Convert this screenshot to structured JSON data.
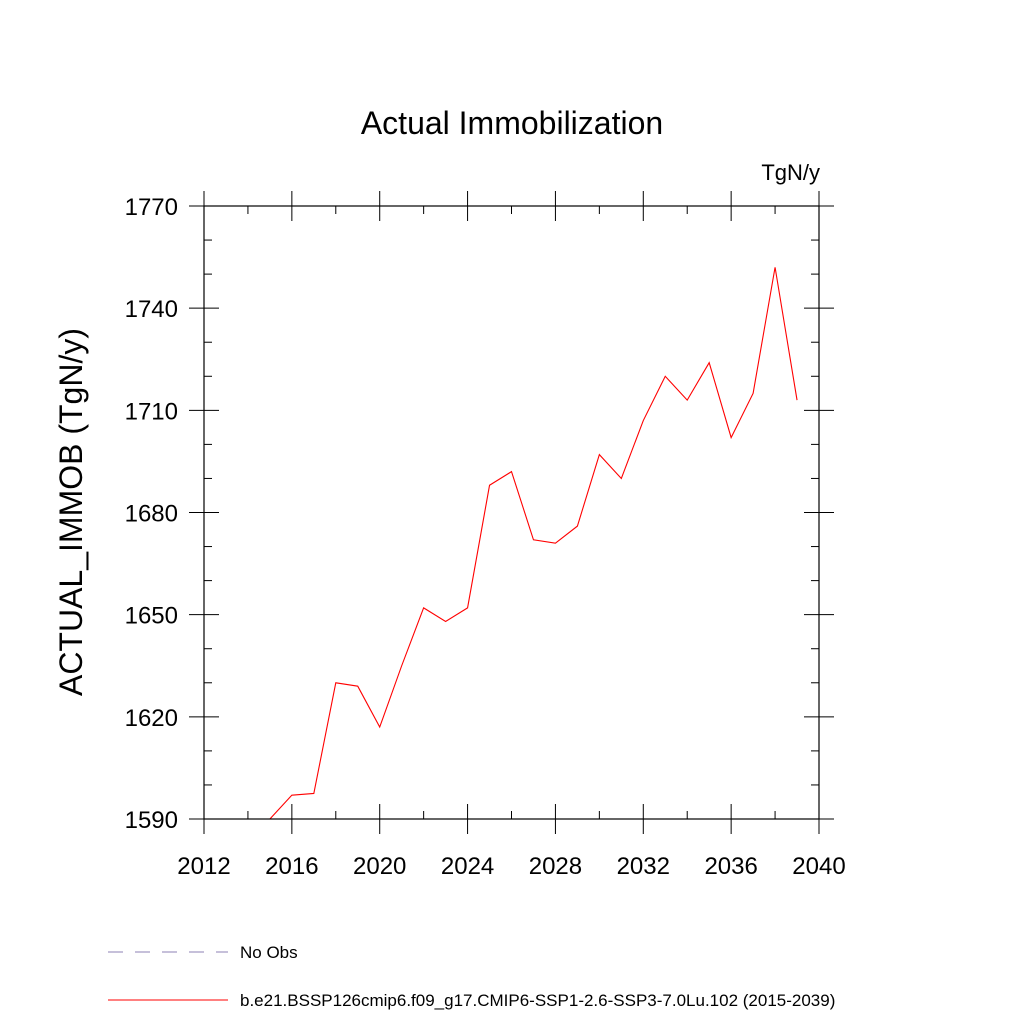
{
  "chart_data": {
    "type": "line",
    "title": "Actual Immobilization",
    "units": "TgN/y",
    "xlabel": "",
    "ylabel": "ACTUAL_IMMOB  (TgN/y)",
    "xlim": [
      2012,
      2040
    ],
    "ylim": [
      1590,
      1770
    ],
    "x_ticks": [
      2012,
      2016,
      2020,
      2024,
      2028,
      2032,
      2036,
      2040
    ],
    "y_ticks": [
      1590,
      1620,
      1650,
      1680,
      1710,
      1740,
      1770
    ],
    "x_minor_step": 2,
    "y_minor_step": 10,
    "grid": false,
    "legend_position": "bottom",
    "series": [
      {
        "name": "b.e21.BSSP126cmip6.f09_g17.CMIP6-SSP1-2.6-SSP3-7.0Lu.102 (2015-2039)",
        "color": "#ff0000",
        "style": "solid",
        "x": [
          2015,
          2016,
          2017,
          2018,
          2019,
          2020,
          2021,
          2022,
          2023,
          2024,
          2025,
          2026,
          2027,
          2028,
          2029,
          2030,
          2031,
          2032,
          2033,
          2034,
          2035,
          2036,
          2037,
          2038,
          2039
        ],
        "y": [
          1590,
          1597,
          1597.5,
          1630,
          1629,
          1617,
          1635,
          1652,
          1648,
          1652,
          1688,
          1692,
          1672,
          1671,
          1676,
          1697,
          1690,
          1707,
          1720,
          1713,
          1724,
          1702,
          1715,
          1752,
          1713
        ]
      }
    ],
    "legend": [
      {
        "label": "No Obs",
        "color": "#8c82b4",
        "style": "dashed"
      },
      {
        "label": "b.e21.BSSP126cmip6.f09_g17.CMIP6-SSP1-2.6-SSP3-7.0Lu.102 (2015-2039)",
        "color": "#ff0000",
        "style": "solid"
      }
    ]
  }
}
